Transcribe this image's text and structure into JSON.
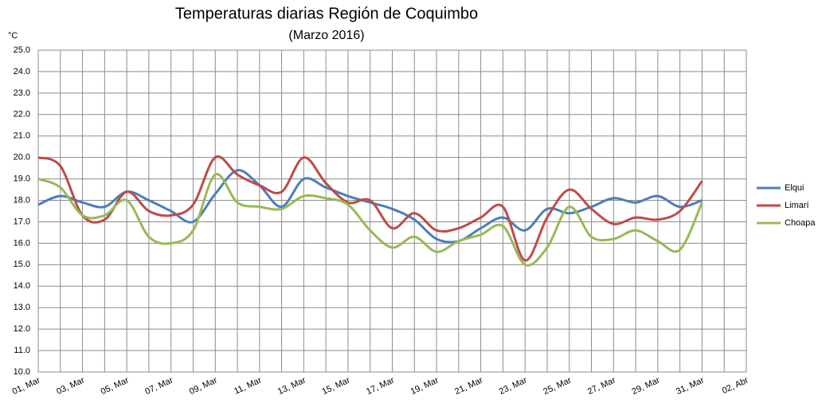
{
  "chart_data": {
    "type": "line",
    "title": "Temperaturas diarias Región de Coquimbo",
    "subtitle": "(Marzo 2016)",
    "y_label": "°C",
    "categories": [
      "01, Mar",
      null,
      "03, Mar",
      null,
      "05, Mar",
      null,
      "07, Mar",
      null,
      "09, Mar",
      null,
      "11, Mar",
      null,
      "13, Mar",
      null,
      "15, Mar",
      null,
      "17, Mar",
      null,
      "19, Mar",
      null,
      "21, Mar",
      null,
      "23, Mar",
      null,
      "25, Mar",
      null,
      "27, Mar",
      null,
      "29, Mar",
      null,
      "31, Mar",
      null,
      "02, Abr"
    ],
    "series": [
      {
        "name": "Elqui",
        "color": "#4a7ebb",
        "values": [
          17.8,
          18.2,
          17.9,
          17.7,
          18.4,
          18.0,
          17.5,
          17.0,
          18.3,
          19.4,
          18.7,
          17.7,
          19.0,
          18.6,
          18.2,
          17.9,
          17.6,
          17.1,
          16.2,
          16.1,
          16.7,
          17.2,
          16.6,
          17.6,
          17.4,
          17.7,
          18.1,
          17.9,
          18.2,
          17.7,
          18.0,
          null,
          null
        ]
      },
      {
        "name": "Limarí",
        "color": "#be4b48",
        "values": [
          20.0,
          19.6,
          17.3,
          17.1,
          18.4,
          17.5,
          17.3,
          17.8,
          20.0,
          19.2,
          18.7,
          18.4,
          20.0,
          18.8,
          17.9,
          18.0,
          16.7,
          17.4,
          16.6,
          16.7,
          17.2,
          17.7,
          15.2,
          17.2,
          18.5,
          17.6,
          16.9,
          17.2,
          17.1,
          17.5,
          18.9,
          null,
          null
        ]
      },
      {
        "name": "Choapa",
        "color": "#98b954",
        "values": [
          19.0,
          18.6,
          17.3,
          17.3,
          18.0,
          16.3,
          16.0,
          16.6,
          19.2,
          17.9,
          17.7,
          17.6,
          18.2,
          18.1,
          17.8,
          16.6,
          15.8,
          16.3,
          15.6,
          16.1,
          16.4,
          16.8,
          15.0,
          15.8,
          17.7,
          16.3,
          16.2,
          16.6,
          16.1,
          15.7,
          17.9,
          null,
          null
        ]
      }
    ],
    "ylim": [
      10,
      25
    ],
    "yticks": [
      {
        "value": 10,
        "label": "10.0"
      },
      {
        "value": 11,
        "label": "11.0"
      },
      {
        "value": 12,
        "label": "12.0"
      },
      {
        "value": 13,
        "label": "13.0"
      },
      {
        "value": 14,
        "label": "14.0"
      },
      {
        "value": 15,
        "label": "15.0"
      },
      {
        "value": 16,
        "label": "16.0"
      },
      {
        "value": 17,
        "label": "17.0"
      },
      {
        "value": 18,
        "label": "18.0"
      },
      {
        "value": 19,
        "label": "19.0"
      },
      {
        "value": 20,
        "label": "20.0"
      },
      {
        "value": 21,
        "label": "21.0"
      },
      {
        "value": 22,
        "label": "22.0"
      },
      {
        "value": 23,
        "label": "23.0"
      },
      {
        "value": 24,
        "label": "24.0"
      },
      {
        "value": 25,
        "label": "25.0"
      }
    ],
    "grid": true,
    "legend": "right"
  }
}
